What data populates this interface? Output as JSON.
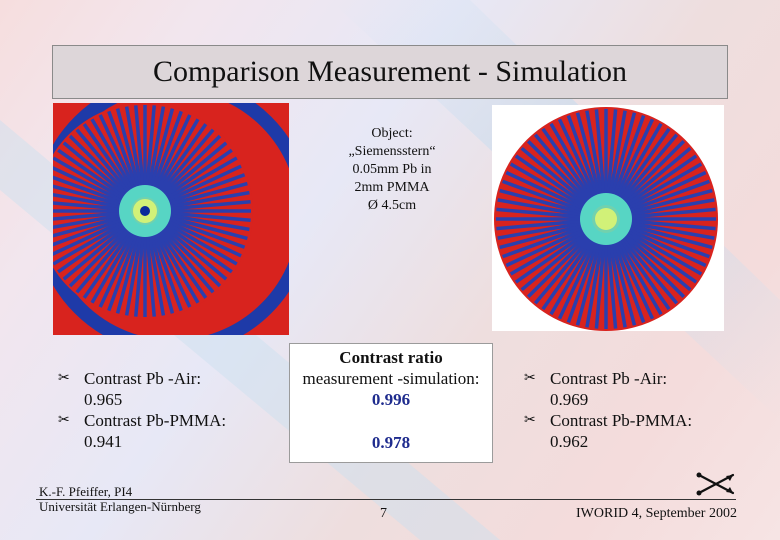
{
  "slide": {
    "title": "Comparison Measurement - Simulation",
    "object_lines": [
      "Object:",
      "„Siemensstern“",
      "0.05mm Pb in",
      "2mm PMMA",
      "Ø 4.5cm"
    ],
    "left_bullets": {
      "item1_label": "Contrast Pb -Air:",
      "item1_value": "0.965",
      "item2_label": "Contrast Pb-PMMA:",
      "item2_value": "0.941"
    },
    "right_bullets": {
      "item1_label": "Contrast Pb -Air:",
      "item1_value": "0.969",
      "item2_label": "Contrast Pb-PMMA:",
      "item2_value": "0.962"
    },
    "ratio": {
      "title": "Contrast ratio",
      "subtitle": "measurement -simulation:",
      "value1": "0.996",
      "value2": "0.978"
    },
    "footer": {
      "author_line1": "K.-F. Pfeiffer, PI4",
      "author_line2": "Universität Erlangen-Nürnberg",
      "page": "7",
      "conference": "IWORID 4, September 2002"
    }
  },
  "colors": {
    "title_bg": "#ddd6d9",
    "ratio_value": "#1f2c8e",
    "star_red": "#d8231e",
    "star_blue": "#2a3fae",
    "star_center": "#5ff0c8"
  },
  "icons": {
    "bullet": "scissors-icon",
    "logo": "crossed-arrows-icon"
  }
}
